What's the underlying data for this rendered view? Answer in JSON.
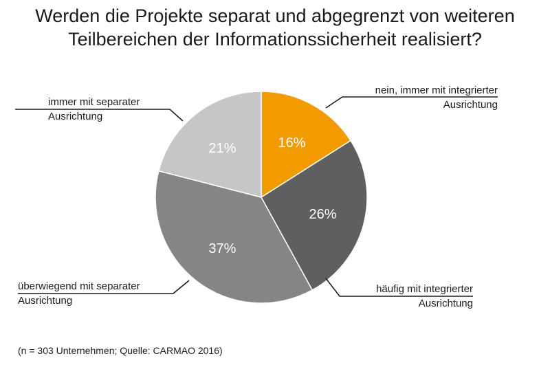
{
  "title_lines": [
    "Werden die Projekte separat und abgegrenzt von weiteren",
    "Teilbereichen der Informationssicherheit realisiert?"
  ],
  "footnote": "(n = 303 Unternehmen; Quelle: CARMAO 2016)",
  "chart_data": {
    "type": "pie",
    "title": "Werden die Projekte separat und abgegrenzt von weiteren Teilbereichen der Informationssicherheit realisiert?",
    "unit": "%",
    "legend": "none",
    "slices": [
      {
        "label_lines": [
          "nein, immer mit integrierter",
          "Ausrichtung"
        ],
        "value": 16,
        "value_label": "16%",
        "color": "#f29b00"
      },
      {
        "label_lines": [
          "häufig mit integrierter",
          "Ausrichtung"
        ],
        "value": 26,
        "value_label": "26%",
        "color": "#5f5f5f"
      },
      {
        "label_lines": [
          "überwiegend mit separater",
          "Ausrichtung"
        ],
        "value": 37,
        "value_label": "37%",
        "color": "#858585"
      },
      {
        "label_lines": [
          "immer mit separater",
          "Ausrichtung"
        ],
        "value": 21,
        "value_label": "21%",
        "color": "#c6c6c6"
      }
    ]
  }
}
